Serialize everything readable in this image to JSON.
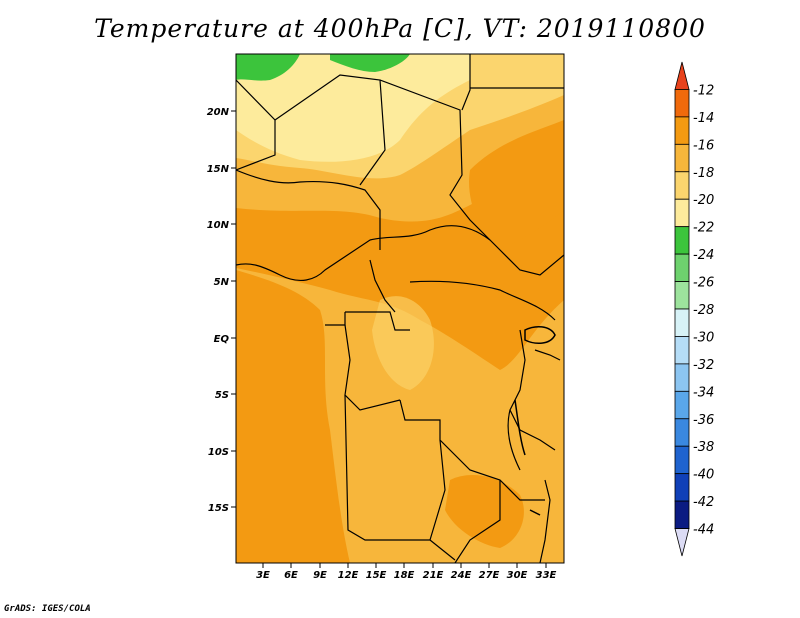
{
  "title": "Temperature at 400hPa [C], VT: 2019110800",
  "credit": "GrADS: IGES/COLA",
  "map": {
    "lat_ticks": [
      "20N",
      "15N",
      "10N",
      "5N",
      "EQ",
      "5S",
      "10S",
      "15S"
    ],
    "lon_ticks": [
      "3E",
      "6E",
      "9E",
      "12E",
      "15E",
      "18E",
      "21E",
      "24E",
      "27E",
      "30E",
      "33E"
    ]
  },
  "colorbar": {
    "levels": [
      "-12",
      "-14",
      "-16",
      "-18",
      "-20",
      "-22",
      "-24",
      "-26",
      "-28",
      "-30",
      "-32",
      "-34",
      "-36",
      "-38",
      "-40",
      "-42",
      "-44"
    ],
    "colors": [
      "#e8421c",
      "#f06a0c",
      "#f39a12",
      "#f7b63b",
      "#fbd56e",
      "#fdeb9c",
      "#3cc43c",
      "#6ed26e",
      "#9de39d",
      "#d7f2f7",
      "#b5ddf7",
      "#8cc5f1",
      "#5aa7ea",
      "#3a88e0",
      "#1f63cf",
      "#1040b8",
      "#0b1b82",
      "#dcdcf5"
    ]
  },
  "colors": {
    "very_warm": "#f39a12",
    "warm": "#f7b63b",
    "mild": "#fbd56e",
    "cool": "#fdeb9c",
    "coldest": "#3cc43c"
  }
}
